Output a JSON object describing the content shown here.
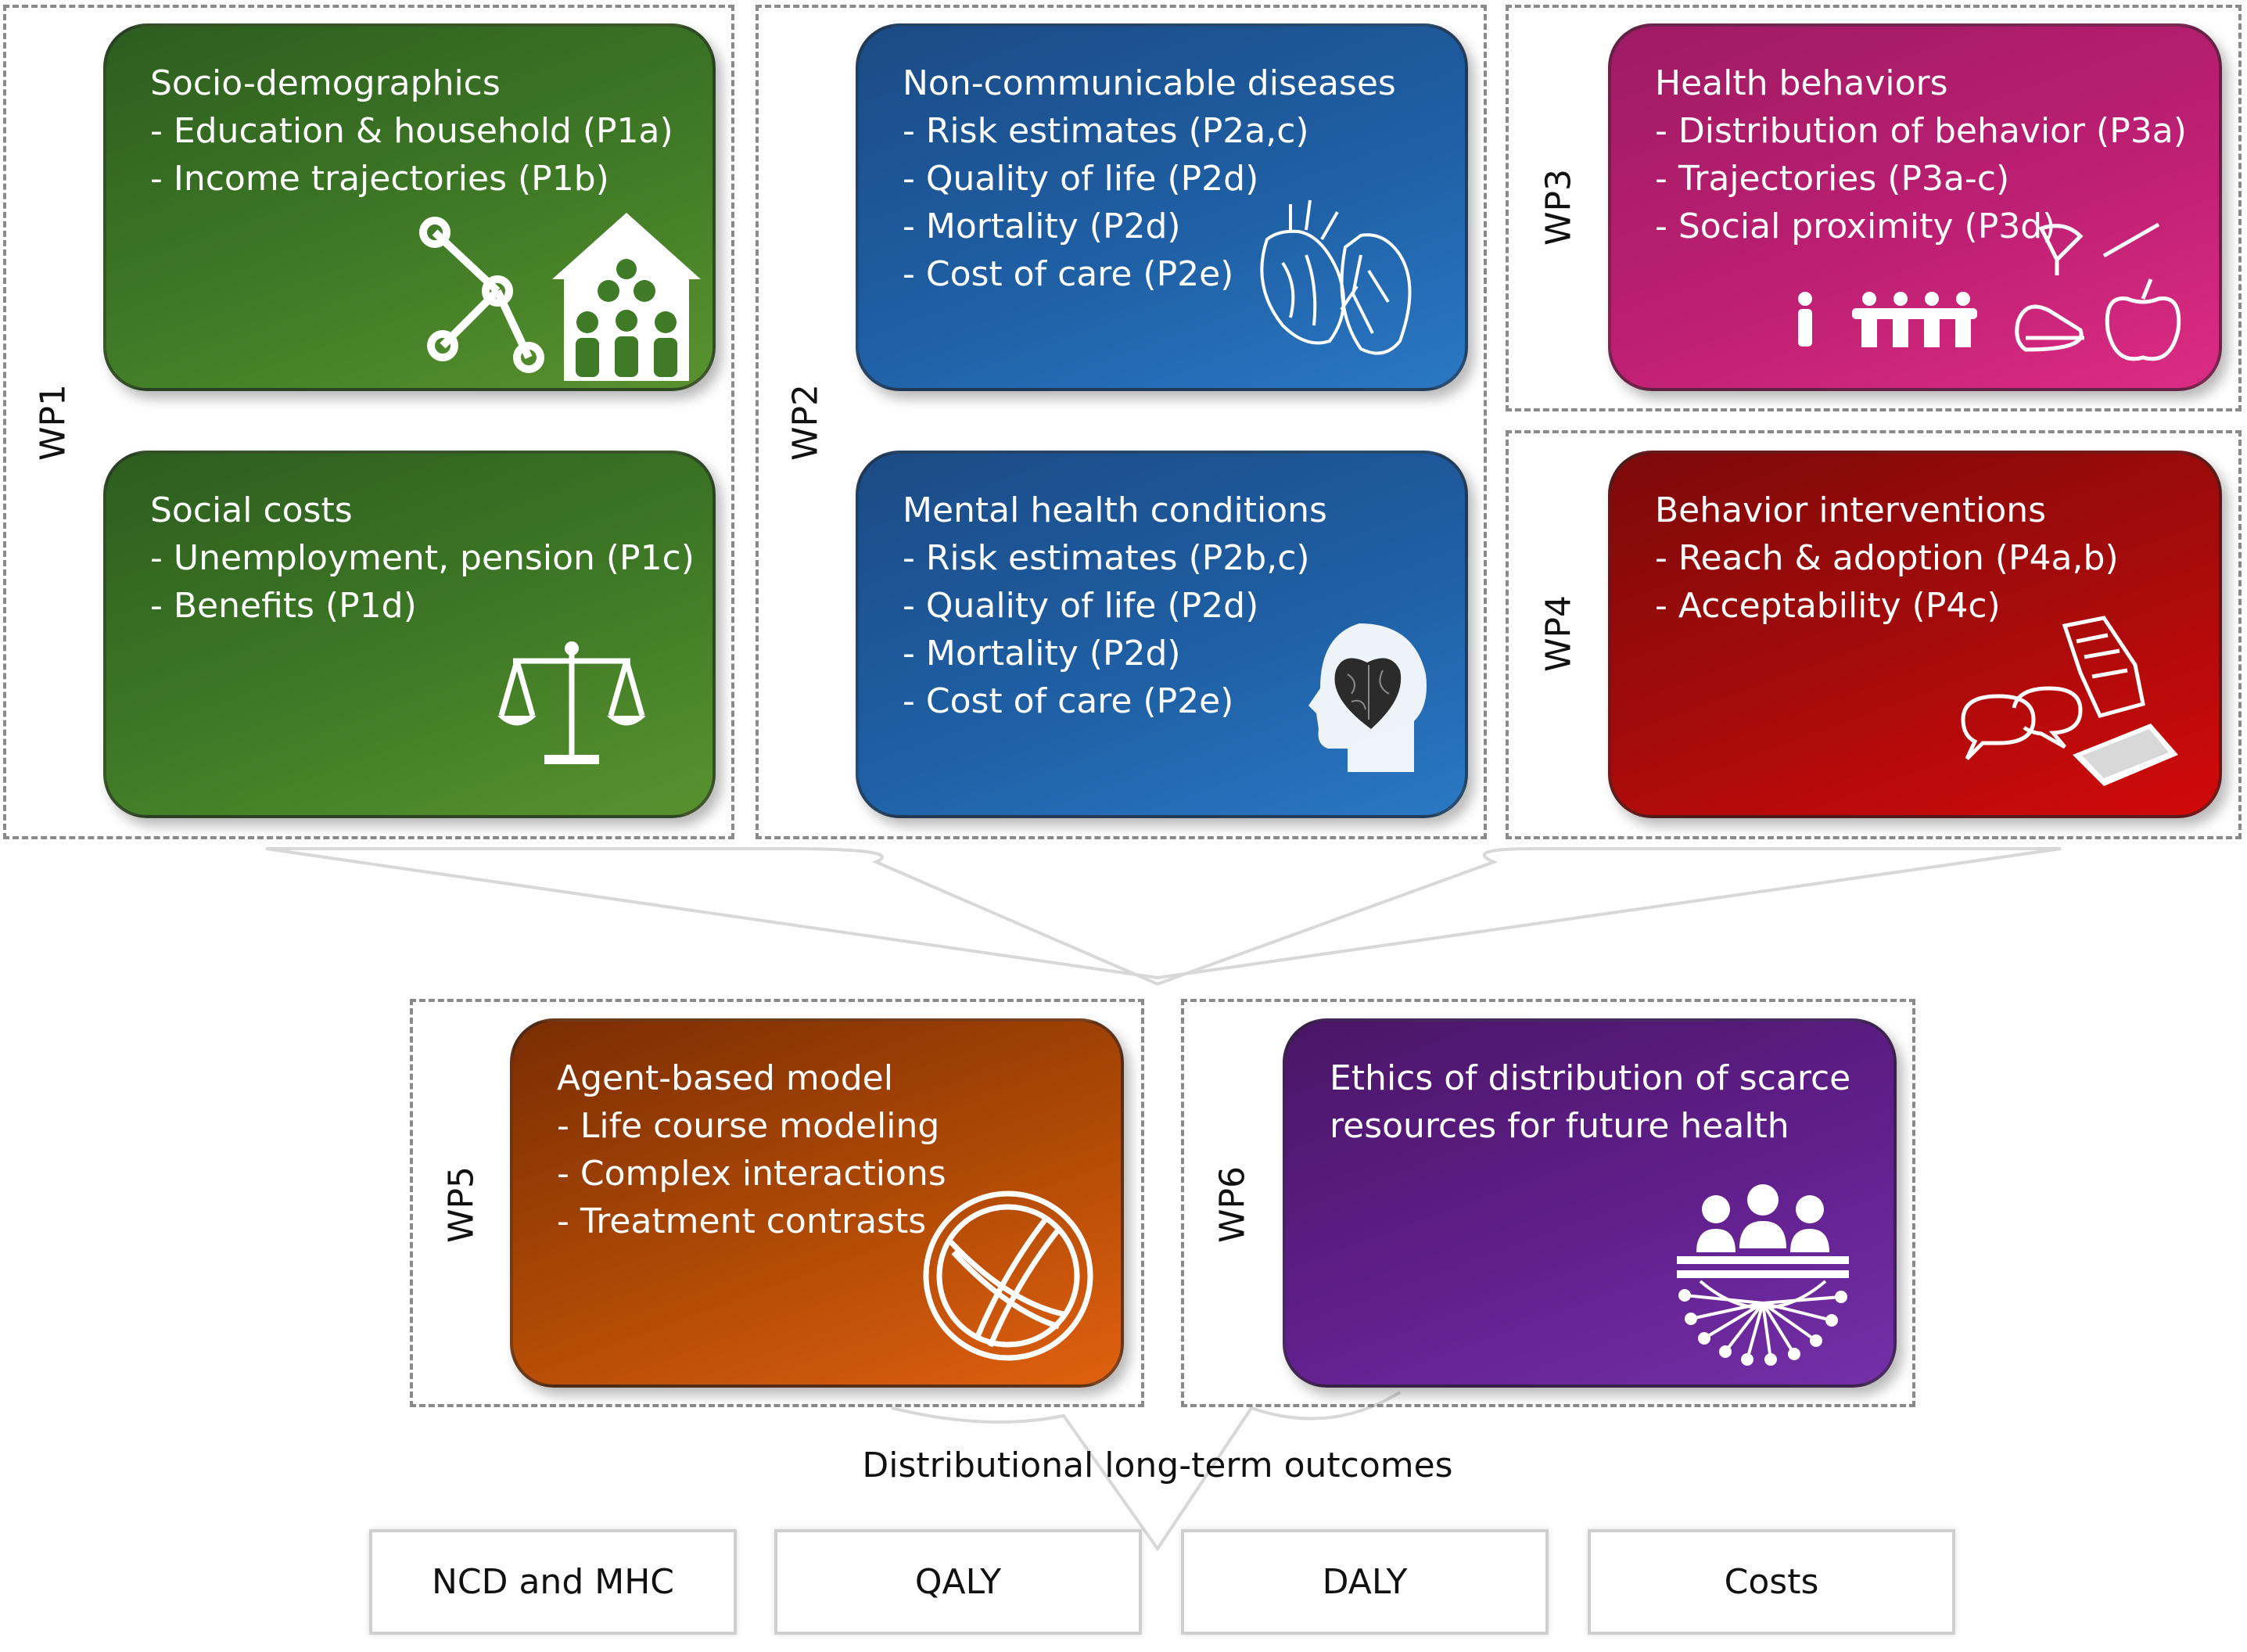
{
  "work_packages": [
    {
      "id": "wp1",
      "label": "WP1"
    },
    {
      "id": "wp2",
      "label": "WP2"
    },
    {
      "id": "wp3",
      "label": "WP3"
    },
    {
      "id": "wp4",
      "label": "WP4"
    },
    {
      "id": "wp5",
      "label": "WP5"
    },
    {
      "id": "wp6",
      "label": "WP6"
    }
  ],
  "boxes": {
    "socio": {
      "title": "Socio-demographics",
      "items": [
        "- Education & household (P1a)",
        "- Income trajectories (P1b)"
      ],
      "icon": "network-house-family-icon"
    },
    "social_costs": {
      "title": "Social costs",
      "items": [
        "- Unemployment, pension (P1c)",
        "- Benefits (P1d)"
      ],
      "icon": "scales-icon"
    },
    "ncd": {
      "title": "Non-communicable diseases",
      "items": [
        "- Risk estimates (P2a,c)",
        "- Quality of life (P2d)",
        "- Mortality (P2d)",
        "- Cost of care (P2e)"
      ],
      "icon": "heart-lungs-icon"
    },
    "mental": {
      "title": "Mental health conditions",
      "items": [
        "- Risk estimates (P2b,c)",
        "- Quality of life (P2d)",
        "- Mortality (P2d)",
        "- Cost of care (P2e)"
      ],
      "icon": "head-heart-brain-icon"
    },
    "health_behaviors": {
      "title": "Health behaviors",
      "items": [
        "- Distribution of behavior (P3a)",
        "- Trajectories (P3a-c)",
        "- Social proximity (P3d)"
      ],
      "icon": "people-lifestyle-icon"
    },
    "behavior_interventions": {
      "title": "Behavior interventions",
      "items": [
        "- Reach & adoption (P4a,b)",
        "- Acceptability (P4c)"
      ],
      "icon": "chat-brochure-phone-icon"
    },
    "agent_model": {
      "title": "Agent-based model",
      "items": [
        "- Life course modeling",
        "- Complex interactions",
        "- Treatment contrasts"
      ],
      "icon": "globe-icon"
    },
    "ethics": {
      "title": "Ethics of distribution of scarce",
      "items": [
        "resources for future health"
      ],
      "icon": "panel-distribution-icon"
    }
  },
  "distributional_label": "Distributional long-term outcomes",
  "outcomes": [
    "NCD and MHC",
    "QALY",
    "DALY",
    "Costs"
  ],
  "colors": {
    "wp1": "#3f7a26",
    "wp2": "#1f5fa4",
    "wp3": "#bd1f72",
    "wp4": "#a80b0b",
    "wp5": "#b04a05",
    "wp6": "#611f8c"
  }
}
